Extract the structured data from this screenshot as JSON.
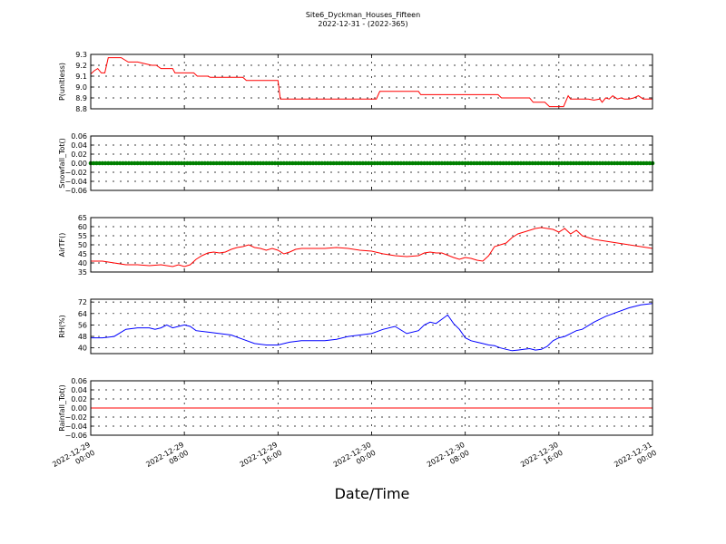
{
  "figure": {
    "title": "Site6_Dyckman_Houses_Fifteen",
    "subtitle": "2022-12-31 - (2022-365)",
    "xlabel": "Date/Time"
  },
  "colors": {
    "red": "#ff0000",
    "green": "#008000",
    "blue": "#0000ff",
    "axis": "#000000"
  },
  "chart_data": [
    {
      "type": "line",
      "ylabel": "P(unitless)",
      "ylim": [
        8.8,
        9.3
      ],
      "yticks": [
        8.8,
        8.9,
        9.0,
        9.1,
        9.2,
        9.3
      ],
      "ytick_labels": [
        "8.8",
        "8.9",
        "9.0",
        "9.1",
        "9.2",
        "9.3"
      ],
      "grid": true,
      "series": [
        {
          "color": "#ff0000",
          "x_hours": [
            0,
            0.3,
            0.6,
            0.9,
            1.2,
            1.5,
            2.2,
            2.6,
            3.2,
            3.7,
            4.0,
            5.2,
            5.6,
            6.0,
            7.0,
            7.2,
            8.8,
            9.1,
            10.0,
            10.2,
            11.5,
            11.8,
            13.0,
            13.3,
            15.8,
            16.0,
            16.2,
            18.0,
            22.0,
            24.4,
            24.7,
            27.0,
            28.0,
            28.2,
            34.8,
            35.1,
            37.5,
            37.8,
            38.8,
            39.2,
            40.0,
            40.4,
            40.8,
            41.0,
            41.2,
            42.5,
            43.0,
            43.5,
            43.7,
            44.0,
            44.3,
            44.6,
            45.0,
            45.3,
            45.6,
            46.0,
            46.4,
            46.8,
            47.2,
            47.6,
            48.0
          ],
          "y": [
            9.12,
            9.15,
            9.17,
            9.13,
            9.13,
            9.27,
            9.27,
            9.27,
            9.23,
            9.23,
            9.23,
            9.2,
            9.2,
            9.17,
            9.17,
            9.13,
            9.13,
            9.1,
            9.1,
            9.09,
            9.09,
            9.09,
            9.09,
            9.06,
            9.06,
            9.06,
            8.89,
            8.89,
            8.89,
            8.89,
            8.96,
            8.96,
            8.96,
            8.93,
            8.93,
            8.9,
            8.9,
            8.86,
            8.86,
            8.82,
            8.82,
            8.82,
            8.92,
            8.89,
            8.89,
            8.89,
            8.88,
            8.89,
            8.86,
            8.9,
            8.89,
            8.92,
            8.89,
            8.9,
            8.89,
            8.89,
            8.9,
            8.92,
            8.89,
            8.89,
            8.89
          ]
        }
      ]
    },
    {
      "type": "scatter",
      "ylabel": "Snowfall_Tot()",
      "ylim": [
        -0.06,
        0.06
      ],
      "yticks": [
        -0.06,
        -0.04,
        -0.02,
        0.0,
        0.02,
        0.04,
        0.06
      ],
      "ytick_labels": [
        "−0.06",
        "−0.04",
        "−0.02",
        "0.00",
        "0.02",
        "0.04",
        "0.06"
      ],
      "grid": true,
      "series": [
        {
          "color": "#008000",
          "x_hours_start": 0,
          "x_hours_end": 48,
          "x_step_hours": 0.25,
          "y_constant": 0.0
        }
      ]
    },
    {
      "type": "line",
      "ylabel": "AirTF()",
      "ylim": [
        35,
        65
      ],
      "yticks": [
        35,
        40,
        45,
        50,
        55,
        60,
        65
      ],
      "ytick_labels": [
        "35",
        "40",
        "45",
        "50",
        "55",
        "60",
        "65"
      ],
      "grid": true,
      "series": [
        {
          "color": "#ff0000",
          "x_hours": [
            0,
            1,
            2,
            3,
            4,
            5,
            6,
            6.5,
            7,
            7.5,
            8,
            8.5,
            9,
            9.5,
            10,
            10.5,
            11,
            11.5,
            12,
            12.5,
            13,
            13.5,
            14,
            14.5,
            15,
            15.5,
            16,
            16.5,
            17,
            17.5,
            18,
            19,
            20,
            21,
            22,
            23,
            24,
            25,
            26,
            27,
            28,
            28.5,
            29,
            29.5,
            30,
            31,
            31.5,
            32,
            32.5,
            33,
            33.5,
            34,
            34.5,
            35,
            35.5,
            36,
            36.5,
            37,
            37.5,
            38,
            38.5,
            39,
            39.5,
            40,
            40.5,
            41,
            41.5,
            42,
            42.5,
            43,
            44,
            45,
            46,
            47,
            48
          ],
          "y": [
            41,
            41,
            40,
            39,
            39,
            38.5,
            39,
            38.5,
            38,
            39,
            38,
            39,
            42,
            44,
            45.5,
            46,
            45.5,
            46,
            47.5,
            48.5,
            49,
            50,
            48.5,
            48,
            47,
            48,
            47,
            45,
            46,
            47.5,
            48,
            48,
            48,
            48.5,
            48,
            47,
            46.5,
            45,
            44,
            43.5,
            44,
            45.5,
            46,
            45.5,
            45.5,
            43,
            42,
            43,
            42.5,
            41.5,
            41,
            44,
            49,
            50,
            51,
            54,
            56,
            57,
            58,
            59,
            59.5,
            59,
            58.5,
            57,
            59,
            56,
            58,
            55,
            54,
            53,
            52,
            51,
            50,
            49,
            48
          ]
        }
      ]
    },
    {
      "type": "line",
      "ylabel": "RH(%)",
      "ylim": [
        36,
        74
      ],
      "yticks": [
        40,
        48,
        56,
        64,
        72
      ],
      "ytick_labels": [
        "40",
        "48",
        "56",
        "64",
        "72"
      ],
      "grid": true,
      "series": [
        {
          "color": "#0000ff",
          "x_hours": [
            0,
            1,
            2,
            3,
            4,
            5,
            5.5,
            6,
            6.5,
            7,
            7.5,
            8,
            8.5,
            9,
            10,
            11,
            12,
            13,
            14,
            15,
            16,
            17,
            18,
            19,
            20,
            21,
            22,
            23,
            24,
            25,
            26,
            27,
            28,
            28.5,
            29,
            29.5,
            30,
            30.5,
            31,
            31.5,
            32,
            32.5,
            33,
            33.5,
            34,
            34.5,
            35,
            35.5,
            36,
            36.5,
            37,
            37.5,
            38,
            38.5,
            39,
            39.5,
            40,
            40.5,
            41,
            41.5,
            42,
            43,
            44,
            45,
            46,
            47,
            48
          ],
          "y": [
            47,
            47,
            48,
            53,
            54,
            54,
            53,
            54,
            56,
            54,
            55,
            56,
            55,
            52,
            51,
            50,
            49,
            46,
            43,
            42,
            42,
            44,
            45,
            45,
            45,
            46,
            48,
            49,
            50,
            53,
            55,
            50,
            52,
            56,
            58,
            57,
            60,
            63,
            57,
            53,
            47,
            45,
            44,
            43,
            42,
            41.5,
            40,
            39,
            38,
            38.5,
            39,
            39.5,
            38.5,
            39,
            41,
            45,
            47,
            48,
            50,
            52,
            53,
            58,
            62,
            65,
            68,
            70,
            71
          ]
        }
      ]
    },
    {
      "type": "line",
      "ylabel": "Rainfall_Tot()",
      "ylim": [
        -0.06,
        0.06
      ],
      "yticks": [
        -0.06,
        -0.04,
        -0.02,
        0.0,
        0.02,
        0.04,
        0.06
      ],
      "ytick_labels": [
        "−0.06",
        "−0.04",
        "−0.02",
        "0.00",
        "0.02",
        "0.04",
        "0.06"
      ],
      "grid": true,
      "series": [
        {
          "color": "#ff0000",
          "x_hours": [
            0,
            48
          ],
          "y": [
            0.0,
            0.0
          ]
        }
      ]
    }
  ],
  "x_axis": {
    "xlim_hours": [
      0,
      48
    ],
    "tick_hours": [
      0,
      8,
      16,
      24,
      32,
      40,
      48
    ],
    "tick_labels": [
      [
        "2022-12-29",
        "00:00"
      ],
      [
        "2022-12-29",
        "08:00"
      ],
      [
        "2022-12-29",
        "16:00"
      ],
      [
        "2022-12-30",
        "00:00"
      ],
      [
        "2022-12-30",
        "08:00"
      ],
      [
        "2022-12-30",
        "16:00"
      ],
      [
        "2022-12-31",
        "00:00"
      ]
    ]
  }
}
